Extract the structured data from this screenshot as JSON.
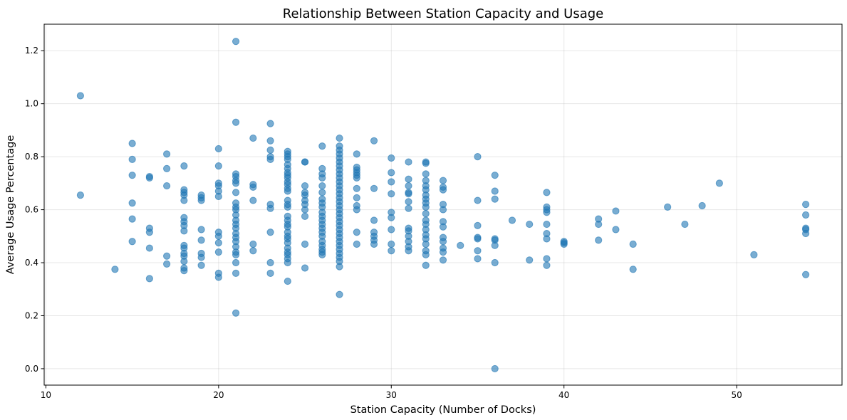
{
  "chart_data": {
    "type": "scatter",
    "title": "Relationship Between Station Capacity and Usage",
    "xlabel": "Station Capacity (Number of Docks)",
    "ylabel": "Average Usage Percentage",
    "xlim": [
      9.9,
      56.1
    ],
    "ylim": [
      -0.062,
      1.3
    ],
    "xticks": [
      10,
      20,
      30,
      40,
      50
    ],
    "yticks": [
      0.0,
      0.2,
      0.4,
      0.6,
      0.8,
      1.0,
      1.2
    ],
    "xtick_labels": [
      "10",
      "20",
      "30",
      "40",
      "50"
    ],
    "ytick_labels": [
      "0.0",
      "0.2",
      "0.4",
      "0.6",
      "0.8",
      "1.0",
      "1.2"
    ],
    "grid": true,
    "point_color": "#1f77b4",
    "point_alpha": 0.6,
    "series": [
      {
        "points": [
          [
            12,
            1.03
          ],
          [
            12,
            0.655
          ],
          [
            14,
            0.375
          ],
          [
            15,
            0.85
          ],
          [
            15,
            0.79
          ],
          [
            15,
            0.73
          ],
          [
            15,
            0.625
          ],
          [
            15,
            0.565
          ],
          [
            15,
            0.48
          ],
          [
            16,
            0.725
          ],
          [
            16,
            0.72
          ],
          [
            16,
            0.53
          ],
          [
            16,
            0.515
          ],
          [
            16,
            0.455
          ],
          [
            16,
            0.34
          ],
          [
            17,
            0.81
          ],
          [
            17,
            0.755
          ],
          [
            17,
            0.69
          ],
          [
            17,
            0.425
          ],
          [
            17,
            0.395
          ],
          [
            18,
            0.765
          ],
          [
            18,
            0.675
          ],
          [
            18,
            0.665
          ],
          [
            18,
            0.655
          ],
          [
            18,
            0.635
          ],
          [
            18,
            0.57
          ],
          [
            18,
            0.555
          ],
          [
            18,
            0.54
          ],
          [
            18,
            0.52
          ],
          [
            18,
            0.465
          ],
          [
            18,
            0.455
          ],
          [
            18,
            0.435
          ],
          [
            18,
            0.425
          ],
          [
            18,
            0.405
          ],
          [
            18,
            0.38
          ],
          [
            18,
            0.37
          ],
          [
            19,
            0.655
          ],
          [
            19,
            0.645
          ],
          [
            19,
            0.635
          ],
          [
            19,
            0.525
          ],
          [
            19,
            0.485
          ],
          [
            19,
            0.435
          ],
          [
            19,
            0.42
          ],
          [
            19,
            0.39
          ],
          [
            20,
            0.83
          ],
          [
            20,
            0.765
          ],
          [
            20,
            0.7
          ],
          [
            20,
            0.69
          ],
          [
            20,
            0.67
          ],
          [
            20,
            0.65
          ],
          [
            20,
            0.515
          ],
          [
            20,
            0.5
          ],
          [
            20,
            0.475
          ],
          [
            20,
            0.44
          ],
          [
            20,
            0.36
          ],
          [
            20,
            0.345
          ],
          [
            21,
            1.235
          ],
          [
            21,
            0.93
          ],
          [
            21,
            0.735
          ],
          [
            21,
            0.725
          ],
          [
            21,
            0.71
          ],
          [
            21,
            0.7
          ],
          [
            21,
            0.665
          ],
          [
            21,
            0.625
          ],
          [
            21,
            0.61
          ],
          [
            21,
            0.6
          ],
          [
            21,
            0.58
          ],
          [
            21,
            0.56
          ],
          [
            21,
            0.545
          ],
          [
            21,
            0.53
          ],
          [
            21,
            0.51
          ],
          [
            21,
            0.495
          ],
          [
            21,
            0.48
          ],
          [
            21,
            0.46
          ],
          [
            21,
            0.44
          ],
          [
            21,
            0.43
          ],
          [
            21,
            0.4
          ],
          [
            21,
            0.36
          ],
          [
            21,
            0.21
          ],
          [
            22,
            0.87
          ],
          [
            22,
            0.695
          ],
          [
            22,
            0.685
          ],
          [
            22,
            0.635
          ],
          [
            22,
            0.47
          ],
          [
            22,
            0.445
          ],
          [
            23,
            0.925
          ],
          [
            23,
            0.86
          ],
          [
            23,
            0.825
          ],
          [
            23,
            0.8
          ],
          [
            23,
            0.79
          ],
          [
            23,
            0.62
          ],
          [
            23,
            0.605
          ],
          [
            23,
            0.515
          ],
          [
            23,
            0.4
          ],
          [
            23,
            0.36
          ],
          [
            24,
            0.82
          ],
          [
            24,
            0.81
          ],
          [
            24,
            0.8
          ],
          [
            24,
            0.79
          ],
          [
            24,
            0.77
          ],
          [
            24,
            0.755
          ],
          [
            24,
            0.74
          ],
          [
            24,
            0.73
          ],
          [
            24,
            0.72
          ],
          [
            24,
            0.705
          ],
          [
            24,
            0.695
          ],
          [
            24,
            0.68
          ],
          [
            24,
            0.67
          ],
          [
            24,
            0.635
          ],
          [
            24,
            0.62
          ],
          [
            24,
            0.61
          ],
          [
            24,
            0.575
          ],
          [
            24,
            0.56
          ],
          [
            24,
            0.545
          ],
          [
            24,
            0.535
          ],
          [
            24,
            0.515
          ],
          [
            24,
            0.5
          ],
          [
            24,
            0.49
          ],
          [
            24,
            0.475
          ],
          [
            24,
            0.455
          ],
          [
            24,
            0.44
          ],
          [
            24,
            0.43
          ],
          [
            24,
            0.415
          ],
          [
            24,
            0.4
          ],
          [
            24,
            0.33
          ],
          [
            25,
            0.78
          ],
          [
            25,
            0.78
          ],
          [
            25,
            0.69
          ],
          [
            25,
            0.665
          ],
          [
            25,
            0.655
          ],
          [
            25,
            0.635
          ],
          [
            25,
            0.62
          ],
          [
            25,
            0.6
          ],
          [
            25,
            0.575
          ],
          [
            25,
            0.47
          ],
          [
            25,
            0.38
          ],
          [
            26,
            0.84
          ],
          [
            26,
            0.755
          ],
          [
            26,
            0.735
          ],
          [
            26,
            0.72
          ],
          [
            26,
            0.69
          ],
          [
            26,
            0.665
          ],
          [
            26,
            0.64
          ],
          [
            26,
            0.625
          ],
          [
            26,
            0.61
          ],
          [
            26,
            0.59
          ],
          [
            26,
            0.575
          ],
          [
            26,
            0.56
          ],
          [
            26,
            0.545
          ],
          [
            26,
            0.53
          ],
          [
            26,
            0.515
          ],
          [
            26,
            0.5
          ],
          [
            26,
            0.48
          ],
          [
            26,
            0.465
          ],
          [
            26,
            0.45
          ],
          [
            26,
            0.44
          ],
          [
            26,
            0.43
          ],
          [
            27,
            0.87
          ],
          [
            27,
            0.84
          ],
          [
            27,
            0.825
          ],
          [
            27,
            0.81
          ],
          [
            27,
            0.795
          ],
          [
            27,
            0.78
          ],
          [
            27,
            0.765
          ],
          [
            27,
            0.75
          ],
          [
            27,
            0.735
          ],
          [
            27,
            0.72
          ],
          [
            27,
            0.705
          ],
          [
            27,
            0.69
          ],
          [
            27,
            0.675
          ],
          [
            27,
            0.66
          ],
          [
            27,
            0.645
          ],
          [
            27,
            0.63
          ],
          [
            27,
            0.615
          ],
          [
            27,
            0.6
          ],
          [
            27,
            0.585
          ],
          [
            27,
            0.57
          ],
          [
            27,
            0.555
          ],
          [
            27,
            0.54
          ],
          [
            27,
            0.525
          ],
          [
            27,
            0.51
          ],
          [
            27,
            0.495
          ],
          [
            27,
            0.48
          ],
          [
            27,
            0.465
          ],
          [
            27,
            0.45
          ],
          [
            27,
            0.435
          ],
          [
            27,
            0.42
          ],
          [
            27,
            0.405
          ],
          [
            27,
            0.385
          ],
          [
            27,
            0.28
          ],
          [
            28,
            0.81
          ],
          [
            28,
            0.76
          ],
          [
            28,
            0.75
          ],
          [
            28,
            0.74
          ],
          [
            28,
            0.73
          ],
          [
            28,
            0.72
          ],
          [
            28,
            0.68
          ],
          [
            28,
            0.645
          ],
          [
            28,
            0.615
          ],
          [
            28,
            0.6
          ],
          [
            28,
            0.515
          ],
          [
            28,
            0.47
          ],
          [
            29,
            0.86
          ],
          [
            29,
            0.68
          ],
          [
            29,
            0.56
          ],
          [
            29,
            0.515
          ],
          [
            29,
            0.5
          ],
          [
            29,
            0.485
          ],
          [
            29,
            0.47
          ],
          [
            30,
            0.795
          ],
          [
            30,
            0.74
          ],
          [
            30,
            0.705
          ],
          [
            30,
            0.66
          ],
          [
            30,
            0.59
          ],
          [
            30,
            0.57
          ],
          [
            30,
            0.525
          ],
          [
            30,
            0.47
          ],
          [
            30,
            0.445
          ],
          [
            31,
            0.78
          ],
          [
            31,
            0.715
          ],
          [
            31,
            0.69
          ],
          [
            31,
            0.665
          ],
          [
            31,
            0.66
          ],
          [
            31,
            0.63
          ],
          [
            31,
            0.605
          ],
          [
            31,
            0.53
          ],
          [
            31,
            0.52
          ],
          [
            31,
            0.5
          ],
          [
            31,
            0.48
          ],
          [
            31,
            0.46
          ],
          [
            31,
            0.445
          ],
          [
            32,
            0.78
          ],
          [
            32,
            0.775
          ],
          [
            32,
            0.735
          ],
          [
            32,
            0.71
          ],
          [
            32,
            0.69
          ],
          [
            32,
            0.675
          ],
          [
            32,
            0.655
          ],
          [
            32,
            0.64
          ],
          [
            32,
            0.625
          ],
          [
            32,
            0.61
          ],
          [
            32,
            0.585
          ],
          [
            32,
            0.56
          ],
          [
            32,
            0.545
          ],
          [
            32,
            0.525
          ],
          [
            32,
            0.505
          ],
          [
            32,
            0.49
          ],
          [
            32,
            0.47
          ],
          [
            32,
            0.445
          ],
          [
            32,
            0.43
          ],
          [
            32,
            0.39
          ],
          [
            33,
            0.71
          ],
          [
            33,
            0.685
          ],
          [
            33,
            0.675
          ],
          [
            33,
            0.62
          ],
          [
            33,
            0.6
          ],
          [
            33,
            0.555
          ],
          [
            33,
            0.535
          ],
          [
            33,
            0.495
          ],
          [
            33,
            0.48
          ],
          [
            33,
            0.455
          ],
          [
            33,
            0.44
          ],
          [
            33,
            0.41
          ],
          [
            34,
            0.465
          ],
          [
            35,
            0.8
          ],
          [
            35,
            0.635
          ],
          [
            35,
            0.54
          ],
          [
            35,
            0.495
          ],
          [
            35,
            0.49
          ],
          [
            35,
            0.445
          ],
          [
            35,
            0.415
          ],
          [
            36,
            0.73
          ],
          [
            36,
            0.67
          ],
          [
            36,
            0.64
          ],
          [
            36,
            0.49
          ],
          [
            36,
            0.485
          ],
          [
            36,
            0.465
          ],
          [
            36,
            0.4
          ],
          [
            36,
            0.0
          ],
          [
            37,
            0.56
          ],
          [
            38,
            0.545
          ],
          [
            38,
            0.41
          ],
          [
            39,
            0.665
          ],
          [
            39,
            0.61
          ],
          [
            39,
            0.6
          ],
          [
            39,
            0.59
          ],
          [
            39,
            0.545
          ],
          [
            39,
            0.51
          ],
          [
            39,
            0.49
          ],
          [
            39,
            0.415
          ],
          [
            39,
            0.39
          ],
          [
            40,
            0.48
          ],
          [
            40,
            0.475
          ],
          [
            40,
            0.47
          ],
          [
            42,
            0.565
          ],
          [
            42,
            0.545
          ],
          [
            42,
            0.485
          ],
          [
            43,
            0.595
          ],
          [
            43,
            0.525
          ],
          [
            44,
            0.47
          ],
          [
            44,
            0.375
          ],
          [
            46,
            0.61
          ],
          [
            47,
            0.545
          ],
          [
            48,
            0.615
          ],
          [
            49,
            0.7
          ],
          [
            51,
            0.43
          ],
          [
            54,
            0.62
          ],
          [
            54,
            0.58
          ],
          [
            54,
            0.53
          ],
          [
            54,
            0.525
          ],
          [
            54,
            0.51
          ],
          [
            54,
            0.355
          ]
        ]
      }
    ]
  }
}
